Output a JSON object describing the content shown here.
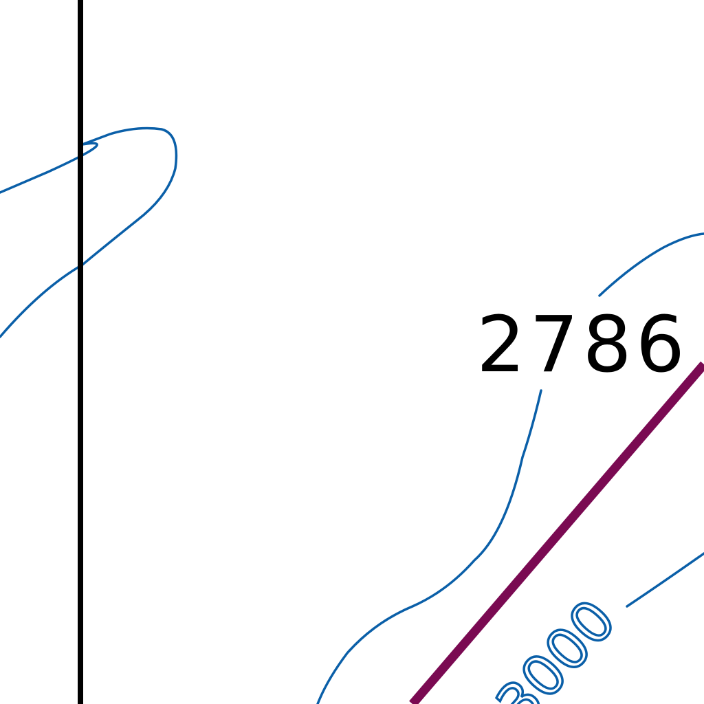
{
  "map": {
    "spot_height_label": "2786",
    "contour_label": "3000",
    "colors": {
      "background": "#ffffff",
      "contour": "#0a5fa8",
      "route": "#7a0a52",
      "grid_line": "#000000",
      "label": "#000000"
    }
  }
}
